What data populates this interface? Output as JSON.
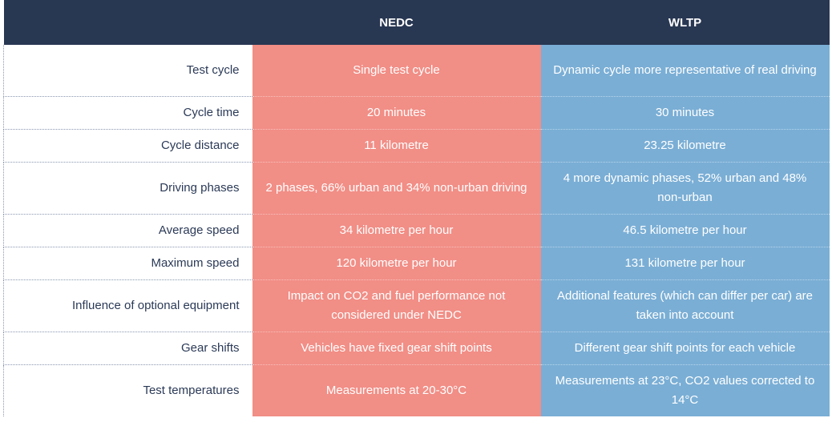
{
  "table": {
    "headers": [
      "",
      "NEDC",
      "WLTP"
    ],
    "rows": [
      {
        "label": "Test cycle",
        "nedc": "Single test cycle",
        "wltp": "Dynamic cycle more representative of real driving"
      },
      {
        "label": "Cycle time",
        "nedc": "20 minutes",
        "wltp": "30 minutes"
      },
      {
        "label": "Cycle distance",
        "nedc": "11 kilometre",
        "wltp": "23.25 kilometre"
      },
      {
        "label": "Driving phases",
        "nedc": "2 phases, 66% urban and 34% non-urban driving",
        "wltp": "4 more dynamic phases, 52% urban and 48% non-urban"
      },
      {
        "label": "Average speed",
        "nedc": "34 kilometre per hour",
        "wltp": "46.5 kilometre per hour"
      },
      {
        "label": "Maximum speed",
        "nedc": "120 kilometre per hour",
        "wltp": "131 kilometre per hour"
      },
      {
        "label": "Influence of optional equipment",
        "nedc": "Impact on CO2 and fuel performance not considered under NEDC",
        "wltp": "Additional features (which can differ per car) are taken into account"
      },
      {
        "label": "Gear shifts",
        "nedc": "Vehicles have fixed gear shift points",
        "wltp": "Different gear shift points for each vehicle"
      },
      {
        "label": "Test temperatures",
        "nedc": "Measurements at 20-30°C",
        "wltp": "Measurements at 23°C, CO2 values corrected to 14°C"
      }
    ]
  },
  "colors": {
    "header_bg": "#283752",
    "nedc_bg": "#f18e86",
    "wltp_bg": "#7aaed5",
    "label_text": "#2b3a57"
  }
}
